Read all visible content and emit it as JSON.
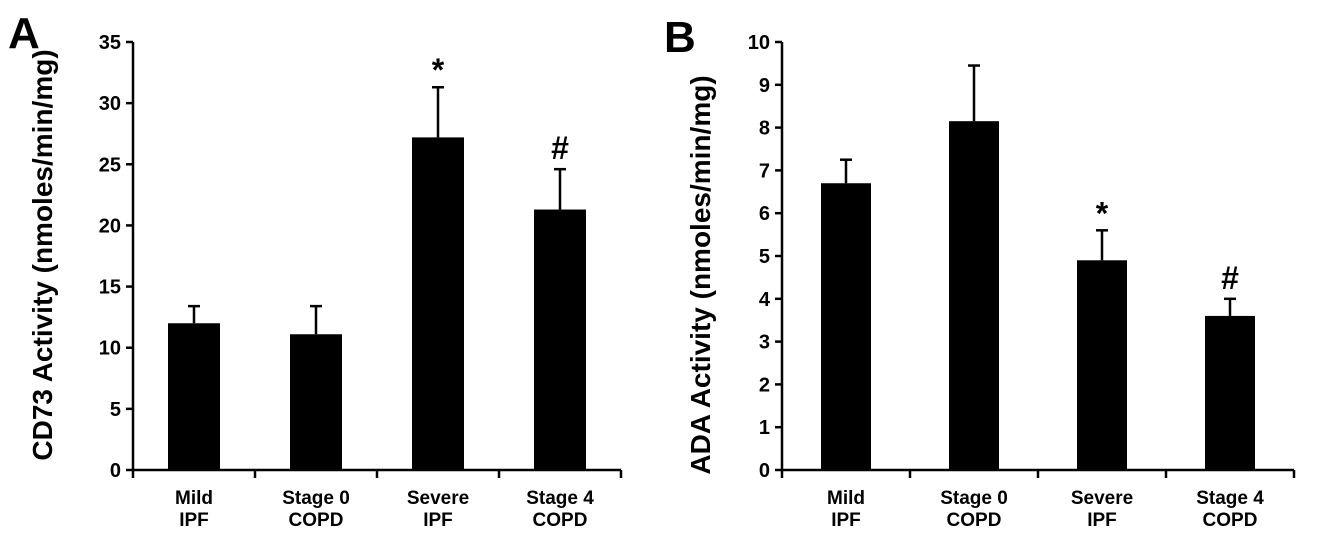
{
  "chart_data": [
    {
      "type": "bar",
      "panel_label": "A",
      "ylabel": "CD73 Activity (nmoles/min/mg)",
      "categories": [
        [
          "Mild",
          "IPF"
        ],
        [
          "Stage 0",
          "COPD"
        ],
        [
          "Severe",
          "IPF"
        ],
        [
          "Stage 4",
          "COPD"
        ]
      ],
      "values": [
        12.0,
        11.1,
        27.2,
        21.3
      ],
      "errors": [
        1.4,
        2.3,
        4.1,
        3.3
      ],
      "annotations": [
        "",
        "",
        "*",
        "#"
      ],
      "ylim": [
        0,
        35
      ],
      "yticks": [
        0,
        5,
        10,
        15,
        20,
        25,
        30,
        35
      ],
      "bar_color": "#000000",
      "grid": false
    },
    {
      "type": "bar",
      "panel_label": "B",
      "ylabel": "ADA Activity (nmoles/min/mg)",
      "categories": [
        [
          "Mild",
          "IPF"
        ],
        [
          "Stage 0",
          "COPD"
        ],
        [
          "Severe",
          "IPF"
        ],
        [
          "Stage 4",
          "COPD"
        ]
      ],
      "values": [
        6.7,
        8.15,
        4.9,
        3.6
      ],
      "errors": [
        0.55,
        1.3,
        0.7,
        0.4
      ],
      "annotations": [
        "",
        "",
        "*",
        "#"
      ],
      "ylim": [
        0,
        10
      ],
      "yticks": [
        0,
        1,
        2,
        3,
        4,
        5,
        6,
        7,
        8,
        9,
        10
      ],
      "bar_color": "#000000",
      "grid": false
    }
  ]
}
